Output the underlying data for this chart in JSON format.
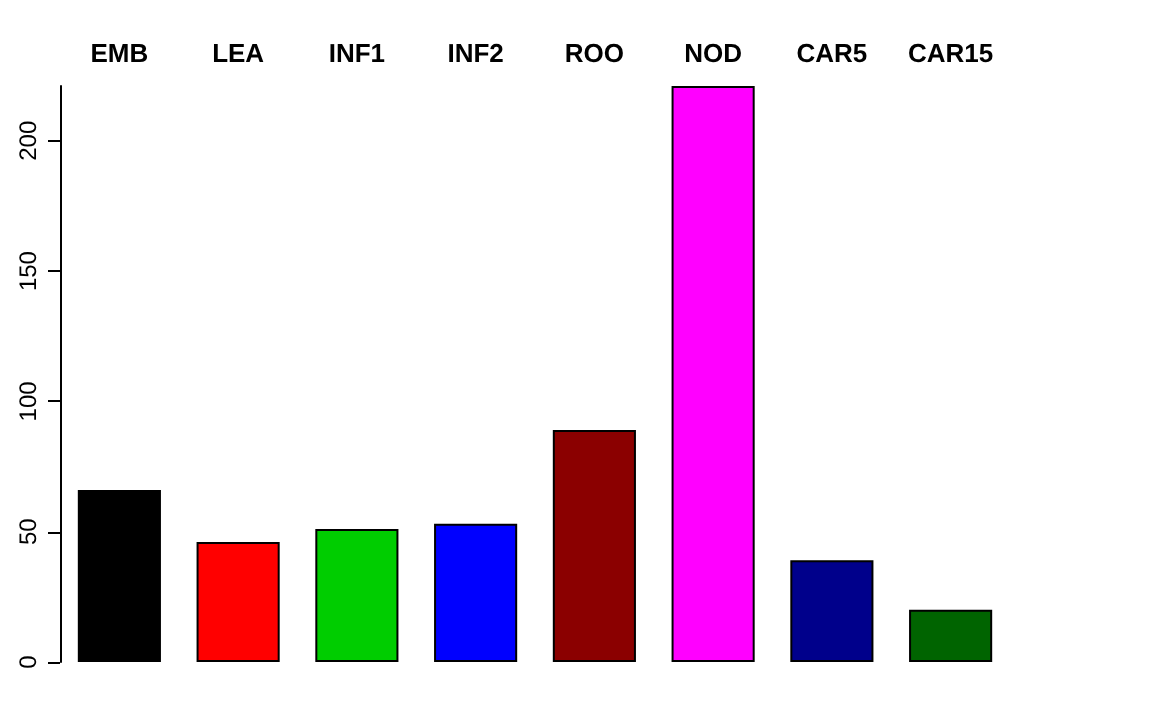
{
  "chart_data": {
    "type": "bar",
    "categories": [
      "EMB",
      "LEA",
      "INF1",
      "INF2",
      "ROO",
      "NOD",
      "CAR5",
      "CAR15"
    ],
    "values": [
      66,
      46,
      51,
      53,
      89,
      221,
      39,
      20
    ],
    "colors": [
      "#000000",
      "#ff0000",
      "#00cd00",
      "#0000ff",
      "#8b0000",
      "#ff00ff",
      "#00008b",
      "#006400"
    ],
    "ylim": [
      0,
      221
    ],
    "yticks": [
      0,
      50,
      100,
      150,
      200
    ]
  }
}
